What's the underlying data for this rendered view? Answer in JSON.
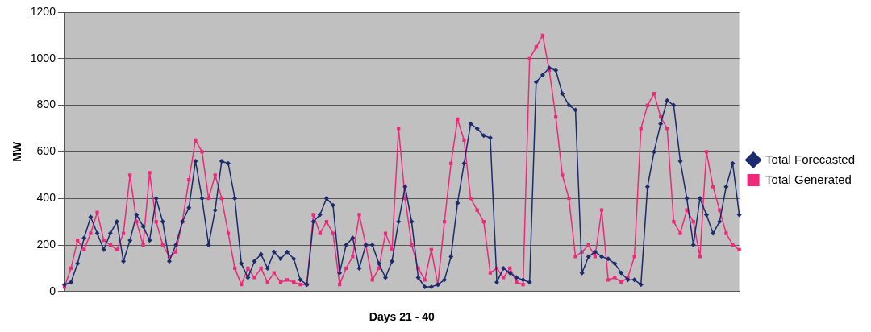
{
  "chart_data": {
    "type": "line",
    "xlabel": "Days 21 - 40",
    "ylabel": "MW",
    "ylim": [
      0,
      1200
    ],
    "yticks": [
      0,
      200,
      400,
      600,
      800,
      1000,
      1200
    ],
    "grid": "y",
    "legend": "right",
    "line_style": "solid",
    "categories": [
      null,
      null,
      null,
      null,
      null,
      null,
      null,
      null,
      null,
      null,
      null,
      null,
      null,
      null,
      null,
      null,
      null,
      null,
      null,
      null,
      null,
      null,
      null,
      null,
      null,
      null,
      null,
      null,
      null,
      null,
      null,
      null,
      null,
      null,
      null,
      null,
      null,
      null,
      null,
      null,
      null,
      null,
      null,
      null,
      null,
      null,
      null,
      null,
      null,
      null,
      null,
      null,
      null,
      null,
      null,
      null,
      null,
      null,
      null,
      null,
      null,
      null,
      null,
      null,
      null,
      null,
      null,
      null,
      null,
      null,
      null,
      null,
      null,
      null,
      null,
      null,
      null,
      null,
      null,
      null,
      null,
      null,
      null,
      null,
      null,
      null,
      null,
      null,
      null,
      null,
      null,
      null,
      null,
      null,
      null,
      null,
      null,
      null,
      null,
      null,
      null,
      null,
      null,
      null
    ],
    "series": [
      {
        "name": "Total Forecasted",
        "color": "#1c2a6e",
        "marker": "diamond",
        "values": [
          30,
          40,
          120,
          230,
          320,
          250,
          180,
          250,
          300,
          130,
          220,
          330,
          280,
          220,
          400,
          300,
          130,
          200,
          300,
          360,
          560,
          400,
          200,
          350,
          560,
          550,
          400,
          120,
          60,
          130,
          160,
          100,
          170,
          140,
          170,
          140,
          50,
          30,
          300,
          330,
          400,
          370,
          80,
          200,
          230,
          100,
          200,
          200,
          120,
          60,
          130,
          300,
          450,
          300,
          60,
          20,
          20,
          30,
          50,
          150,
          380,
          550,
          720,
          700,
          670,
          660,
          40,
          100,
          80,
          60,
          50,
          40,
          900,
          930,
          960,
          950,
          850,
          800,
          780,
          80,
          150,
          170,
          150,
          140,
          120,
          80,
          50,
          50,
          30,
          450,
          600,
          720,
          820,
          800,
          560,
          400,
          200,
          400,
          330,
          250,
          300,
          450,
          550,
          330
        ]
      },
      {
        "name": "Total Generated",
        "color": "#f0287a",
        "marker": "square",
        "values": [
          20,
          100,
          220,
          180,
          250,
          340,
          220,
          200,
          180,
          250,
          500,
          300,
          200,
          510,
          300,
          200,
          150,
          170,
          300,
          480,
          650,
          600,
          400,
          500,
          400,
          250,
          100,
          30,
          100,
          60,
          100,
          40,
          80,
          40,
          50,
          40,
          30,
          30,
          330,
          250,
          300,
          250,
          30,
          100,
          150,
          330,
          200,
          50,
          100,
          250,
          180,
          700,
          400,
          200,
          100,
          50,
          180,
          30,
          300,
          550,
          740,
          650,
          400,
          350,
          300,
          80,
          100,
          60,
          100,
          40,
          30,
          1000,
          1050,
          1100,
          950,
          750,
          500,
          400,
          150,
          170,
          200,
          150,
          350,
          50,
          60,
          40,
          60,
          150,
          700,
          800,
          850,
          750,
          700,
          300,
          250,
          350,
          300,
          150,
          600,
          450,
          350,
          250,
          200,
          180
        ]
      }
    ]
  }
}
